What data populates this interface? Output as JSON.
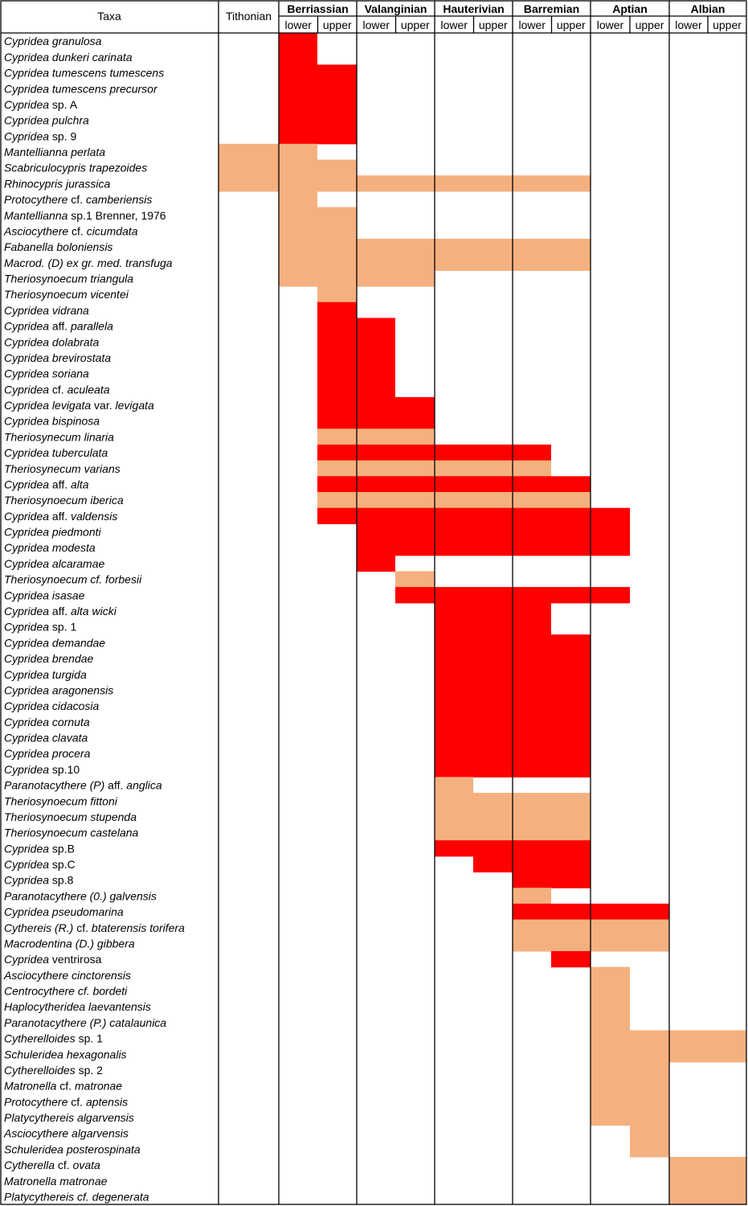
{
  "chart_data": {
    "type": "range_chart",
    "header": {
      "taxa": "Taxa",
      "pre_stage": "Tithonian",
      "stages": [
        {
          "name": "Berriassian",
          "sub": [
            "lower",
            "upper"
          ]
        },
        {
          "name": "Valanginian",
          "sub": [
            "lower",
            "upper"
          ]
        },
        {
          "name": "Hauterivian",
          "sub": [
            "lower",
            "upper"
          ]
        },
        {
          "name": "Barremian",
          "sub": [
            "lower",
            "upper"
          ]
        },
        {
          "name": "Aptian",
          "sub": [
            "lower",
            "upper"
          ]
        },
        {
          "name": "Albian",
          "sub": [
            "lower",
            "upper"
          ]
        }
      ]
    },
    "interval_index": {
      "Tithonian": 0,
      "Berriassian lower": 1,
      "Berriassian upper": 2,
      "Valanginian lower": 3,
      "Valanginian upper": 4,
      "Hauterivian lower": 5,
      "Hauterivian upper": 6,
      "Barremian lower": 7,
      "Barremian upper": 8,
      "Aptian lower": 9,
      "Aptian upper": 10,
      "Albian lower": 11,
      "Albian upper": 12
    },
    "colors": {
      "red": "#ff0000",
      "salmon": "#f5b080"
    },
    "taxa": [
      {
        "name": [
          [
            "Cyprideа granulosa",
            true
          ]
        ],
        "color": "red",
        "from": 1,
        "to": 1
      },
      {
        "name": [
          [
            "Cypridea dunkeri carinata",
            true
          ]
        ],
        "color": "red",
        "from": 1,
        "to": 1
      },
      {
        "name": [
          [
            "Cypridea tumescens tumescens",
            true
          ]
        ],
        "color": "red",
        "from": 1,
        "to": 2
      },
      {
        "name": [
          [
            "Cypridea tumescens precursor",
            true
          ]
        ],
        "color": "red",
        "from": 1,
        "to": 2
      },
      {
        "name": [
          [
            "Cypridea",
            true
          ],
          [
            " sp. A",
            false
          ]
        ],
        "color": "red",
        "from": 1,
        "to": 2
      },
      {
        "name": [
          [
            "Cypridea pulchra",
            true
          ]
        ],
        "color": "red",
        "from": 1,
        "to": 2
      },
      {
        "name": [
          [
            "Cypridea",
            true
          ],
          [
            " sp. 9",
            false
          ]
        ],
        "color": "red",
        "from": 1,
        "to": 2
      },
      {
        "name": [
          [
            "Mantellianna perlata",
            true
          ]
        ],
        "color": "salmon",
        "from": 0,
        "to": 1
      },
      {
        "name": [
          [
            "Scabriculocypris trapezoides",
            true
          ]
        ],
        "color": "salmon",
        "from": 0,
        "to": 2
      },
      {
        "name": [
          [
            "Rhinocypris jurassica",
            true
          ]
        ],
        "color": "salmon",
        "from": 0,
        "to": 8
      },
      {
        "name": [
          [
            "Protocythere",
            true
          ],
          [
            " cf. ",
            false
          ],
          [
            "camberiensis",
            true
          ]
        ],
        "color": "salmon",
        "from": 1,
        "to": 1
      },
      {
        "name": [
          [
            "Mantellianna",
            true
          ],
          [
            " sp.1 Brenner, 1976",
            false
          ]
        ],
        "color": "salmon",
        "from": 1,
        "to": 2
      },
      {
        "name": [
          [
            "Asciocythere",
            true
          ],
          [
            " cf. ",
            false
          ],
          [
            "cicumdata",
            true
          ]
        ],
        "color": "salmon",
        "from": 1,
        "to": 2
      },
      {
        "name": [
          [
            "Fabanella boloniensis",
            true
          ]
        ],
        "color": "salmon",
        "from": 1,
        "to": 8
      },
      {
        "name": [
          [
            "Macrod. (D) ex gr. med. transfuga",
            true
          ]
        ],
        "color": "salmon",
        "from": 1,
        "to": 8
      },
      {
        "name": [
          [
            "Theriosynoecum triangula",
            true
          ]
        ],
        "color": "salmon",
        "from": 1,
        "to": 4
      },
      {
        "name": [
          [
            "Theriosynoecum vicentei",
            true
          ]
        ],
        "color": "salmon",
        "from": 2,
        "to": 2
      },
      {
        "name": [
          [
            "Cypridea vidrana",
            true
          ]
        ],
        "color": "red",
        "from": 2,
        "to": 2
      },
      {
        "name": [
          [
            "Cypridea",
            true
          ],
          [
            " aff. ",
            false
          ],
          [
            "parallela",
            true
          ]
        ],
        "color": "red",
        "from": 2,
        "to": 3
      },
      {
        "name": [
          [
            "Cypridea dolabrata",
            true
          ]
        ],
        "color": "red",
        "from": 2,
        "to": 3
      },
      {
        "name": [
          [
            "Cypridea brevirostata",
            true
          ]
        ],
        "color": "red",
        "from": 2,
        "to": 3
      },
      {
        "name": [
          [
            "Cypridea soriana",
            true
          ]
        ],
        "color": "red",
        "from": 2,
        "to": 3
      },
      {
        "name": [
          [
            "Cypridea",
            true
          ],
          [
            " cf. ",
            false
          ],
          [
            "aculeata",
            true
          ]
        ],
        "color": "red",
        "from": 2,
        "to": 3
      },
      {
        "name": [
          [
            "Cypridea levigata",
            true
          ],
          [
            " var. ",
            false
          ],
          [
            "levigata",
            true
          ]
        ],
        "color": "red",
        "from": 2,
        "to": 4
      },
      {
        "name": [
          [
            "Cypridea bispinosa",
            true
          ]
        ],
        "color": "red",
        "from": 2,
        "to": 4
      },
      {
        "name": [
          [
            "Theriosynecum linaria",
            true
          ]
        ],
        "color": "salmon",
        "from": 2,
        "to": 4
      },
      {
        "name": [
          [
            "Cypridea tuberculata",
            true
          ]
        ],
        "color": "red",
        "from": 2,
        "to": 7
      },
      {
        "name": [
          [
            "Theriosynecum varians",
            true
          ]
        ],
        "color": "salmon",
        "from": 2,
        "to": 7
      },
      {
        "name": [
          [
            "Cypridea",
            true
          ],
          [
            " aff. ",
            false
          ],
          [
            "alta",
            true
          ]
        ],
        "color": "red",
        "from": 2,
        "to": 8
      },
      {
        "name": [
          [
            "Theriosynoecum iberica",
            true
          ]
        ],
        "color": "salmon",
        "from": 2,
        "to": 8
      },
      {
        "name": [
          [
            "Cypridea",
            true
          ],
          [
            " aff. ",
            false
          ],
          [
            "valdensis",
            true
          ]
        ],
        "color": "red",
        "from": 2,
        "to": 9
      },
      {
        "name": [
          [
            "Cypridea piedmonti",
            true
          ]
        ],
        "color": "red",
        "from": 3,
        "to": 9
      },
      {
        "name": [
          [
            "Cypridea modesta",
            true
          ]
        ],
        "color": "red",
        "from": 3,
        "to": 9
      },
      {
        "name": [
          [
            "Cypridea alcaramae",
            true
          ]
        ],
        "color": "red",
        "from": 3,
        "to": 3
      },
      {
        "name": [
          [
            "Theriosynoecum cf. forbesii",
            true
          ]
        ],
        "color": "salmon",
        "from": 4,
        "to": 4
      },
      {
        "name": [
          [
            "Cypridea isasae",
            true
          ]
        ],
        "color": "red",
        "from": 4,
        "to": 9
      },
      {
        "name": [
          [
            "Cypridea",
            true
          ],
          [
            " aff. ",
            false
          ],
          [
            "alta wicki",
            true
          ]
        ],
        "color": "red",
        "from": 5,
        "to": 7
      },
      {
        "name": [
          [
            "Cypridea",
            true
          ],
          [
            " sp. 1",
            false
          ]
        ],
        "color": "red",
        "from": 5,
        "to": 7
      },
      {
        "name": [
          [
            "Cypridea demandae",
            true
          ]
        ],
        "color": "red",
        "from": 5,
        "to": 8
      },
      {
        "name": [
          [
            "Cypridea brendae",
            true
          ]
        ],
        "color": "red",
        "from": 5,
        "to": 8
      },
      {
        "name": [
          [
            "Cypridea turgida",
            true
          ]
        ],
        "color": "red",
        "from": 5,
        "to": 8
      },
      {
        "name": [
          [
            "Cypridea aragonensis",
            true
          ]
        ],
        "color": "red",
        "from": 5,
        "to": 8
      },
      {
        "name": [
          [
            "Cypridea cidacosia",
            true
          ]
        ],
        "color": "red",
        "from": 5,
        "to": 8
      },
      {
        "name": [
          [
            "Cypridea cornuta",
            true
          ]
        ],
        "color": "red",
        "from": 5,
        "to": 8
      },
      {
        "name": [
          [
            "Cypridea clavata",
            true
          ]
        ],
        "color": "red",
        "from": 5,
        "to": 8
      },
      {
        "name": [
          [
            "Cypridea procera",
            true
          ]
        ],
        "color": "red",
        "from": 5,
        "to": 8
      },
      {
        "name": [
          [
            "Cypridea",
            true
          ],
          [
            " sp.10",
            false
          ]
        ],
        "color": "red",
        "from": 5,
        "to": 8
      },
      {
        "name": [
          [
            "Paranotacythere (P)",
            true
          ],
          [
            " aff. ",
            false
          ],
          [
            "anglica",
            true
          ]
        ],
        "color": "salmon",
        "from": 5,
        "to": 5
      },
      {
        "name": [
          [
            "Theriosynoecum fittoni",
            true
          ]
        ],
        "color": "salmon",
        "from": 5,
        "to": 8
      },
      {
        "name": [
          [
            "Theriosynoecum stupenda",
            true
          ]
        ],
        "color": "salmon",
        "from": 5,
        "to": 8
      },
      {
        "name": [
          [
            "Theriosynoecum castelana",
            true
          ]
        ],
        "color": "salmon",
        "from": 5,
        "to": 8
      },
      {
        "name": [
          [
            "Cypridea",
            true
          ],
          [
            " sp.B",
            false
          ]
        ],
        "color": "red",
        "from": 5,
        "to": 8
      },
      {
        "name": [
          [
            "Cypridea",
            true
          ],
          [
            " sp.C",
            false
          ]
        ],
        "color": "red",
        "from": 6,
        "to": 8
      },
      {
        "name": [
          [
            "Cypridea",
            true
          ],
          [
            " sp.8",
            false
          ]
        ],
        "color": "red",
        "from": 7,
        "to": 8
      },
      {
        "name": [
          [
            "Paranotacythere (0.) galvensis",
            true
          ]
        ],
        "color": "salmon",
        "from": 7,
        "to": 7
      },
      {
        "name": [
          [
            "Cypridea pseudomarina",
            true
          ]
        ],
        "color": "red",
        "from": 7,
        "to": 10
      },
      {
        "name": [
          [
            "Cythereis (R.)",
            true
          ],
          [
            " cf. ",
            false
          ],
          [
            "btaterensis torifera",
            true
          ]
        ],
        "color": "salmon",
        "from": 7,
        "to": 10
      },
      {
        "name": [
          [
            "Macrodentina (D.) gibbera",
            true
          ]
        ],
        "color": "salmon",
        "from": 7,
        "to": 10
      },
      {
        "name": [
          [
            "Cypridea",
            true
          ],
          [
            " ventrirosa",
            false
          ]
        ],
        "color": "red",
        "from": 8,
        "to": 8
      },
      {
        "name": [
          [
            "Asciocythere cinctorensis",
            true
          ]
        ],
        "color": "salmon",
        "from": 9,
        "to": 9
      },
      {
        "name": [
          [
            "Centrocythere cf. bordeti",
            true
          ]
        ],
        "color": "salmon",
        "from": 9,
        "to": 9
      },
      {
        "name": [
          [
            "Haplocytheridea laevantensis",
            true
          ]
        ],
        "color": "salmon",
        "from": 9,
        "to": 9
      },
      {
        "name": [
          [
            "Paranotacythere (P.) catalaunica",
            true
          ]
        ],
        "color": "salmon",
        "from": 9,
        "to": 9
      },
      {
        "name": [
          [
            "Cytherelloides",
            true
          ],
          [
            " sp. 1",
            false
          ]
        ],
        "color": "salmon",
        "from": 9,
        "to": 12
      },
      {
        "name": [
          [
            "Schuleridea hexagonalis",
            true
          ]
        ],
        "color": "salmon",
        "from": 9,
        "to": 12
      },
      {
        "name": [
          [
            "Cytherelloides",
            true
          ],
          [
            " sp. 2",
            false
          ]
        ],
        "color": "salmon",
        "from": 9,
        "to": 10
      },
      {
        "name": [
          [
            "Matronella",
            true
          ],
          [
            " cf. ",
            false
          ],
          [
            "matronae",
            true
          ]
        ],
        "color": "salmon",
        "from": 9,
        "to": 10
      },
      {
        "name": [
          [
            "Protocythere",
            true
          ],
          [
            " cf. ",
            false
          ],
          [
            "aptensis",
            true
          ]
        ],
        "color": "salmon",
        "from": 9,
        "to": 10
      },
      {
        "name": [
          [
            "Platycythereis algarvensis",
            true
          ]
        ],
        "color": "salmon",
        "from": 9,
        "to": 10
      },
      {
        "name": [
          [
            "Asciocythere algarvensis",
            true
          ]
        ],
        "color": "salmon",
        "from": 10,
        "to": 10
      },
      {
        "name": [
          [
            "Schuleridea posterospinata",
            true
          ]
        ],
        "color": "salmon",
        "from": 10,
        "to": 10
      },
      {
        "name": [
          [
            "Cytherella",
            true
          ],
          [
            " cf. ",
            false
          ],
          [
            "ovata",
            true
          ]
        ],
        "color": "salmon",
        "from": 11,
        "to": 12
      },
      {
        "name": [
          [
            "Matronella matronae",
            true
          ]
        ],
        "color": "salmon",
        "from": 11,
        "to": 12
      },
      {
        "name": [
          [
            "Platycythereis cf. degenerata",
            true
          ]
        ],
        "color": "salmon",
        "from": 11,
        "to": 12
      }
    ]
  }
}
